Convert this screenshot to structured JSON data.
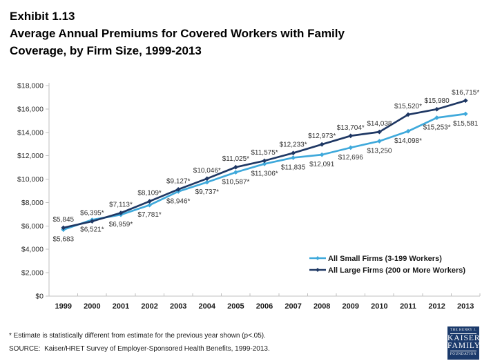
{
  "title": {
    "lines": [
      "Exhibit 1.13",
      "Average Annual Premiums for Covered Workers with Family",
      "Coverage, by Firm Size, 1999-2013"
    ]
  },
  "footnote": "* Estimate is statistically different from estimate for the previous year shown (p<.05).",
  "source": "SOURCE:  Kaiser/HRET Survey of Employer-Sponsored Health Benefits, 1999-2013.",
  "logo": {
    "line1": "THE HENRY J.",
    "line2": "KAISER",
    "line3": "FAMILY",
    "line4": "FOUNDATION"
  },
  "colors": {
    "small_firms": "#3fa9db",
    "large_firms": "#1f3864",
    "axis": "#bfbfbf",
    "data_label": "#333333",
    "tick_label": "#262626",
    "year_label": "#1a1a1a",
    "logo_bg": "#1b3a6b"
  },
  "chart_data": {
    "type": "line",
    "title": "Average Annual Premiums for Covered Workers with Family Coverage, by Firm Size, 1999-2013",
    "x": [
      1999,
      2000,
      2001,
      2002,
      2003,
      2004,
      2005,
      2006,
      2007,
      2008,
      2009,
      2010,
      2011,
      2012,
      2013
    ],
    "series": [
      {
        "name": "All Small Firms (3-199 Workers)",
        "color_key": "small_firms",
        "label_side": "below",
        "values": [
          5683,
          6521,
          6959,
          7781,
          8946,
          9737,
          10587,
          11306,
          11835,
          12091,
          12696,
          13250,
          14098,
          15253,
          15581
        ],
        "labels": [
          "$5,683",
          "$6,521*",
          "$6,959*",
          "$7,781*",
          "$8,946*",
          "$9,737*",
          "$10,587*",
          "$11,306*",
          "$11,835",
          "$12,091",
          "$12,696",
          "$13,250",
          "$14,098*",
          "$15,253*",
          "$15,581"
        ]
      },
      {
        "name": "All Large Firms (200 or More Workers)",
        "color_key": "large_firms",
        "label_side": "above",
        "values": [
          5845,
          6395,
          7113,
          8109,
          9127,
          10046,
          11025,
          11575,
          12233,
          12973,
          13704,
          14038,
          15520,
          15980,
          16715
        ],
        "labels": [
          "$5,845",
          "$6,395*",
          "$7,113*",
          "$8,109*",
          "$9,127*",
          "$10,046*",
          "$11,025*",
          "$11,575*",
          "$12,233*",
          "$12,973*",
          "$13,704*",
          "$14,038",
          "$15,520*",
          "$15,980",
          "$16,715*"
        ]
      }
    ],
    "ylim": [
      0,
      18000
    ],
    "ytick_step": 2000,
    "ytick_prefix": "$",
    "grid": false,
    "legend_position": "inside-right-bottom"
  }
}
